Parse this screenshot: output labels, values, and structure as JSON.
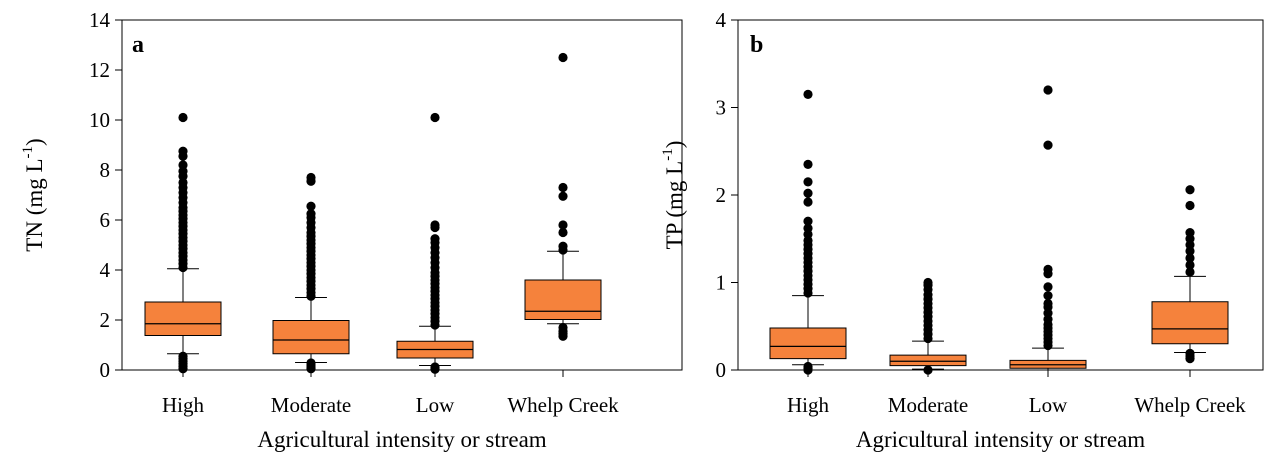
{
  "chart_data": [
    {
      "type": "box",
      "panel_label": "a",
      "categories": [
        "High",
        "Moderate",
        "Low",
        "Whelp Creek"
      ],
      "xlabel": "Agricultural intensity or stream",
      "ylabel_main": "TN (mg L",
      "ylabel_sup": "-1",
      "ylabel_close": ")",
      "ylim": [
        0,
        14
      ],
      "yticks": [
        0,
        2,
        4,
        6,
        8,
        10,
        12,
        14
      ],
      "colors": {
        "box": "#F5823C",
        "outline": "#000000",
        "outlier": "#000000"
      },
      "boxes": [
        {
          "q1": 1.38,
          "median": 1.85,
          "q3": 2.72,
          "whisker_low": 0.65,
          "whisker_high": 4.05,
          "outliers": [
            0.05,
            0.15,
            0.25,
            0.35,
            0.45,
            0.55,
            4.1,
            4.25,
            4.4,
            4.55,
            4.7,
            4.85,
            5.0,
            5.15,
            5.3,
            5.45,
            5.6,
            5.75,
            5.9,
            6.05,
            6.2,
            6.35,
            6.5,
            6.7,
            6.9,
            7.1,
            7.3,
            7.5,
            7.75,
            7.95,
            8.2,
            8.55,
            8.75,
            10.1
          ]
        },
        {
          "q1": 0.65,
          "median": 1.2,
          "q3": 1.98,
          "whisker_low": 0.3,
          "whisker_high": 2.9,
          "outliers": [
            0.05,
            0.12,
            0.2,
            0.28,
            2.95,
            3.1,
            3.25,
            3.4,
            3.55,
            3.7,
            3.85,
            4.0,
            4.15,
            4.3,
            4.45,
            4.6,
            4.75,
            4.9,
            5.05,
            5.2,
            5.35,
            5.5,
            5.7,
            5.9,
            6.1,
            6.25,
            6.55,
            7.55,
            7.7
          ]
        },
        {
          "q1": 0.48,
          "median": 0.82,
          "q3": 1.15,
          "whisker_low": 0.18,
          "whisker_high": 1.75,
          "outliers": [
            0.03,
            0.08,
            0.12,
            1.8,
            1.95,
            2.1,
            2.25,
            2.4,
            2.55,
            2.7,
            2.85,
            3.0,
            3.15,
            3.3,
            3.45,
            3.6,
            3.75,
            3.9,
            4.1,
            4.3,
            4.5,
            4.7,
            4.9,
            5.1,
            5.25,
            5.7,
            5.8,
            10.1
          ]
        },
        {
          "q1": 2.02,
          "median": 2.35,
          "q3": 3.6,
          "whisker_low": 1.85,
          "whisker_high": 4.75,
          "outliers": [
            1.35,
            1.45,
            1.55,
            1.7,
            4.8,
            4.95,
            5.5,
            5.8,
            6.95,
            7.3,
            12.5
          ]
        }
      ]
    },
    {
      "type": "box",
      "panel_label": "b",
      "categories": [
        "High",
        "Moderate",
        "Low",
        "Whelp Creek"
      ],
      "xlabel": "Agricultural intensity or stream",
      "ylabel_main": "TP (mg L",
      "ylabel_sup": "-1",
      "ylabel_close": ")",
      "ylim": [
        0,
        4
      ],
      "yticks": [
        0,
        1,
        2,
        3,
        4
      ],
      "colors": {
        "box": "#F5823C",
        "outline": "#000000",
        "outlier": "#000000"
      },
      "boxes": [
        {
          "q1": 0.13,
          "median": 0.27,
          "q3": 0.48,
          "whisker_low": 0.06,
          "whisker_high": 0.85,
          "outliers": [
            0.0,
            0.02,
            0.04,
            0.88,
            0.93,
            0.98,
            1.03,
            1.08,
            1.13,
            1.18,
            1.23,
            1.28,
            1.33,
            1.38,
            1.43,
            1.48,
            1.55,
            1.62,
            1.7,
            1.92,
            2.02,
            2.15,
            2.35,
            3.15
          ]
        },
        {
          "q1": 0.05,
          "median": 0.1,
          "q3": 0.17,
          "whisker_low": 0.01,
          "whisker_high": 0.33,
          "outliers": [
            0.0,
            0.36,
            0.41,
            0.46,
            0.51,
            0.56,
            0.61,
            0.66,
            0.71,
            0.76,
            0.81,
            0.86,
            0.92,
            0.97,
            1.0
          ]
        },
        {
          "q1": 0.02,
          "median": 0.06,
          "q3": 0.11,
          "whisker_low": 0.0,
          "whisker_high": 0.25,
          "outliers": [
            0.28,
            0.32,
            0.36,
            0.4,
            0.44,
            0.48,
            0.52,
            0.58,
            0.65,
            0.72,
            0.76,
            0.85,
            0.95,
            1.1,
            1.15,
            2.57,
            3.2
          ]
        },
        {
          "q1": 0.3,
          "median": 0.47,
          "q3": 0.78,
          "whisker_low": 0.2,
          "whisker_high": 1.07,
          "outliers": [
            0.13,
            0.16,
            0.19,
            1.12,
            1.2,
            1.28,
            1.36,
            1.43,
            1.5,
            1.57,
            1.88,
            2.06
          ]
        }
      ]
    }
  ]
}
